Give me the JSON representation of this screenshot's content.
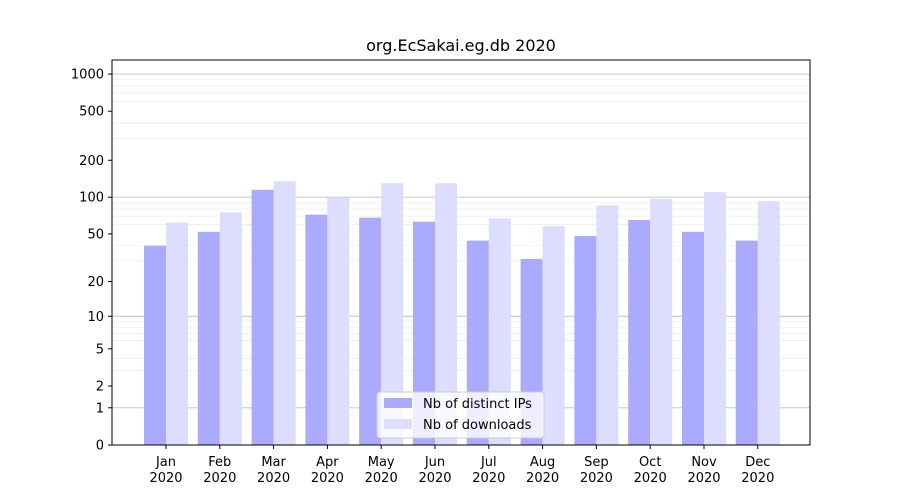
{
  "chart_data": {
    "type": "bar",
    "title": "org.EcSakai.eg.db 2020",
    "xlabel": "",
    "ylabel": "",
    "y_scale": "log1p",
    "ylim": [
      0,
      1300
    ],
    "y_ticks": [
      0,
      1,
      2,
      5,
      10,
      20,
      50,
      100,
      200,
      500,
      1000
    ],
    "y_tick_labels": [
      "0",
      "1",
      "2",
      "5",
      "10",
      "20",
      "50",
      "100",
      "200",
      "500",
      "1000"
    ],
    "grid": true,
    "legend_position": "bottom-center",
    "categories": [
      [
        "Jan",
        "2020"
      ],
      [
        "Feb",
        "2020"
      ],
      [
        "Mar",
        "2020"
      ],
      [
        "Apr",
        "2020"
      ],
      [
        "May",
        "2020"
      ],
      [
        "Jun",
        "2020"
      ],
      [
        "Jul",
        "2020"
      ],
      [
        "Aug",
        "2020"
      ],
      [
        "Sep",
        "2020"
      ],
      [
        "Oct",
        "2020"
      ],
      [
        "Nov",
        "2020"
      ],
      [
        "Dec",
        "2020"
      ]
    ],
    "series": [
      {
        "name": "Nb of distinct IPs",
        "color": "#aaaaff",
        "values": [
          40,
          52,
          115,
          72,
          68,
          63,
          44,
          31,
          48,
          65,
          52,
          44
        ]
      },
      {
        "name": "Nb of downloads",
        "color": "#ddddff",
        "values": [
          62,
          75,
          135,
          99,
          130,
          130,
          67,
          58,
          86,
          97,
          110,
          93
        ]
      }
    ]
  }
}
